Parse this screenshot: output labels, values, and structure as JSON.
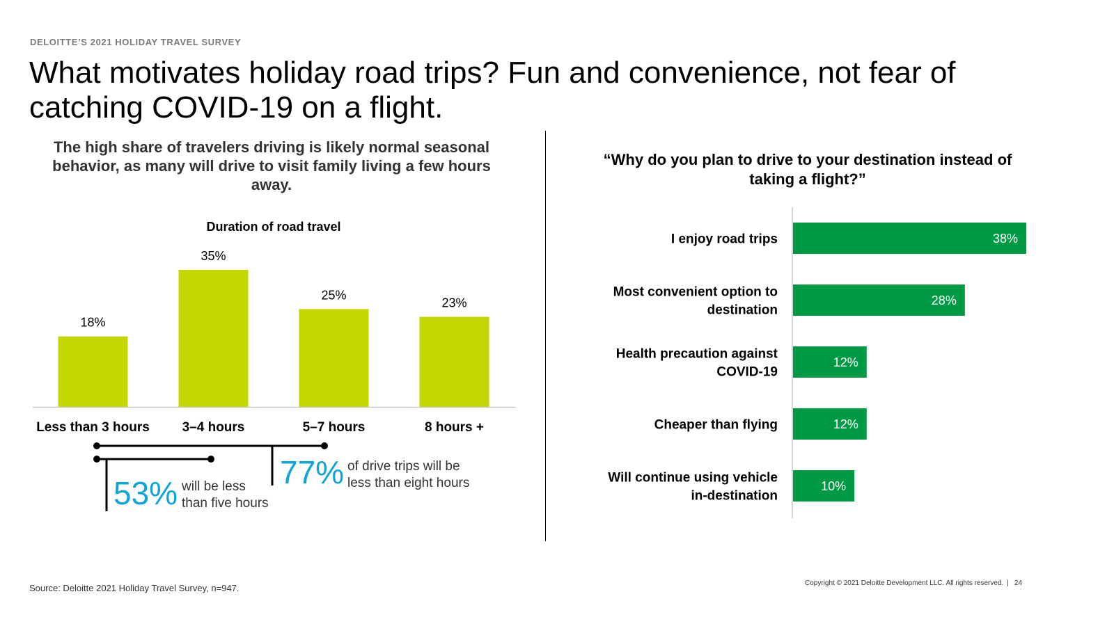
{
  "header": {
    "eyebrow": "DELOITTE’S 2021 HOLIDAY TRAVEL SURVEY",
    "title": "What motivates holiday road trips? Fun and convenience, not fear of catching COVID-19 on a flight."
  },
  "left_panel": {
    "subtitle": "The high share of travelers driving is likely normal seasonal behavior, as many will drive to visit family living a few hours away."
  },
  "right_panel": {
    "question": "“Why do you plan to drive to your destination instead of taking a flight?”"
  },
  "callouts": [
    {
      "value": "53%",
      "text_lines": [
        "will be less",
        "than five hours"
      ]
    },
    {
      "value": "77%",
      "text_lines": [
        "of drive trips will be",
        "less than eight hours"
      ]
    }
  ],
  "footer": {
    "source": "Source: Deloitte 2021 Holiday Travel Survey, n=947.",
    "copyright": "Copyright © 2021 Deloitte Development LLC. All rights reserved.",
    "separator": "|",
    "page_number": "24"
  },
  "colors": {
    "lime": "#c4d600",
    "green": "#009a44",
    "accent_blue": "#0ea5d8",
    "axis_gray": "#c8c8c8",
    "text_dark": "#000000"
  },
  "chart_data": [
    {
      "type": "bar",
      "title": "Duration of road travel",
      "categories": [
        "Less than 3 hours",
        "3–4 hours",
        "5–7 hours",
        "8 hours +"
      ],
      "values": [
        18,
        35,
        25,
        23
      ],
      "value_labels": [
        "18%",
        "35%",
        "25%",
        "23%"
      ],
      "ylim": [
        0,
        35
      ],
      "xlabel": "",
      "ylabel": "",
      "grid": false
    },
    {
      "type": "bar",
      "orientation": "horizontal",
      "title": "“Why do you plan to drive to your destination instead of taking a flight?”",
      "categories": [
        [
          "I enjoy road trips"
        ],
        [
          "Most convenient option to",
          "destination"
        ],
        [
          "Health precaution against",
          "COVID-19"
        ],
        [
          "Cheaper than flying"
        ],
        [
          "Will continue using vehicle",
          "in-destination"
        ]
      ],
      "values": [
        38,
        28,
        12,
        12,
        10
      ],
      "value_labels": [
        "38%",
        "28%",
        "12%",
        "12%",
        "10%"
      ],
      "xlim": [
        0,
        38
      ],
      "grid": false
    }
  ]
}
